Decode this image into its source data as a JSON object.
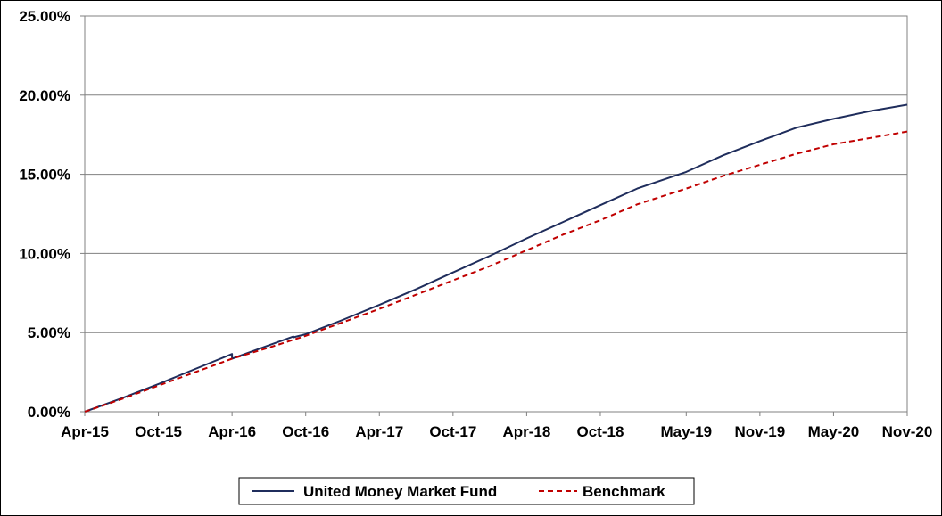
{
  "chart_data": {
    "type": "line",
    "title": "",
    "xlabel": "",
    "ylabel": "",
    "x_tick_labels": [
      "Apr-15",
      "Oct-15",
      "Apr-16",
      "Oct-16",
      "Apr-17",
      "Oct-17",
      "Apr-18",
      "Oct-18",
      "May-19",
      "Nov-19",
      "May-20",
      "Nov-20"
    ],
    "y_tick_labels": [
      "0.00%",
      "5.00%",
      "10.00%",
      "15.00%",
      "20.00%",
      "25.00%"
    ],
    "ylim": [
      0,
      25
    ],
    "x_range_months": [
      "Apr-15",
      "Nov-20"
    ],
    "grid": "horizontal",
    "legend_position": "bottom",
    "series": [
      {
        "name": "United Money Market Fund",
        "color": "#1f2d5c",
        "style": "solid",
        "x": [
          "Apr-15",
          "Jul-15",
          "Oct-15",
          "Jan-16",
          "Apr-16",
          "Apr-16",
          "Jul-16",
          "Sep-16",
          "Sep-16",
          "Oct-16",
          "Jan-17",
          "Apr-17",
          "Jul-17",
          "Oct-17",
          "Jan-18",
          "Apr-18",
          "Jul-18",
          "Oct-18",
          "Jan-19",
          "May-19",
          "Aug-19",
          "Nov-19",
          "Feb-20",
          "May-20",
          "Aug-20",
          "Nov-20"
        ],
        "values": [
          0.0,
          0.85,
          1.75,
          2.7,
          3.65,
          3.35,
          4.2,
          4.75,
          4.7,
          4.9,
          5.8,
          6.75,
          7.75,
          8.8,
          9.85,
          10.95,
          12.0,
          13.05,
          14.1,
          15.15,
          16.2,
          17.1,
          17.95,
          18.5,
          19.0,
          19.4
        ]
      },
      {
        "name": "Benchmark",
        "color": "#c00000",
        "style": "dashed",
        "x": [
          "Apr-15",
          "Jul-15",
          "Oct-15",
          "Jan-16",
          "Apr-16",
          "Jul-16",
          "Oct-16",
          "Jan-17",
          "Apr-17",
          "Jul-17",
          "Oct-17",
          "Jan-18",
          "Apr-18",
          "Jul-18",
          "Oct-18",
          "Jan-19",
          "May-19",
          "Aug-19",
          "Nov-19",
          "Feb-20",
          "May-20",
          "Aug-20",
          "Nov-20"
        ],
        "values": [
          0.0,
          0.8,
          1.65,
          2.5,
          3.35,
          4.05,
          4.8,
          5.65,
          6.5,
          7.4,
          8.3,
          9.2,
          10.2,
          11.2,
          12.1,
          13.1,
          14.1,
          14.9,
          15.6,
          16.3,
          16.9,
          17.3,
          17.7
        ]
      }
    ]
  }
}
